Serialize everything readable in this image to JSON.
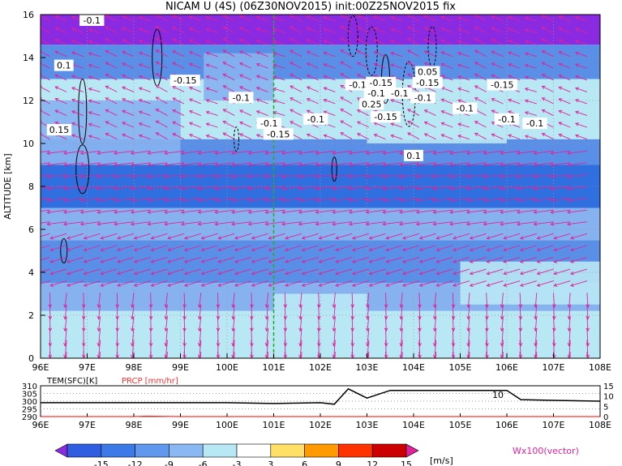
{
  "title": "NICAM U (4S) (06Z30NOV2015) init:00Z25NOV2015 fix",
  "colors": {
    "purple": "#8a2be2",
    "blue_dark": "#2f6fe0",
    "blue_mid": "#5a8fe8",
    "blue_light": "#86b3f0",
    "cyan_light": "#b9e8f5",
    "vector": "#e0229a",
    "green_line": "#22aa22",
    "precip_red": "#ff3333"
  },
  "chart_data": [
    {
      "type": "heatmap",
      "title": "NICAM U (4S) (06Z30NOV2015) init:00Z25NOV2015 fix",
      "xlabel": "",
      "ylabel": "ALTITUDE [km]",
      "x_ticks": [
        "96E",
        "97E",
        "98E",
        "99E",
        "100E",
        "101E",
        "102E",
        "103E",
        "104E",
        "105E",
        "106E",
        "107E",
        "108E"
      ],
      "y_ticks": [
        "0",
        "2",
        "4",
        "6",
        "8",
        "10",
        "12",
        "14",
        "16"
      ],
      "xlim": [
        96,
        108
      ],
      "ylim": [
        0,
        16
      ],
      "marker_line_x": 101,
      "contour_labels": [
        "-0.1",
        "0.1",
        "-0.15",
        "0.15",
        "-0.1",
        "-0.1",
        "-0.15",
        "-0.1",
        "-0.1",
        "-0.15",
        "0.25",
        "-0.15",
        "-0.1",
        "-0.1",
        "0.05",
        "-0.15",
        "-0.1",
        "-0.15",
        "-0.1",
        "-0.1",
        "-0.1",
        "0.1"
      ],
      "vector_label": "Wx100(vector)"
    },
    {
      "type": "line",
      "series": [
        {
          "name": "TEM(SFC)[K]",
          "x": [
            96,
            97,
            98,
            99,
            100,
            101,
            102,
            102.3,
            102.6,
            103,
            103.5,
            104,
            105,
            106,
            106.3,
            107,
            108
          ],
          "values": [
            299,
            299,
            299,
            299,
            299,
            298.5,
            299,
            298,
            308,
            302,
            307,
            307,
            307,
            307,
            301,
            300.5,
            300
          ]
        },
        {
          "name": "PRCP [mm/hr]",
          "x": [
            96,
            98,
            98.3,
            98.6,
            99,
            108
          ],
          "values": [
            0,
            0,
            0.2,
            0.1,
            0,
            0
          ]
        }
      ],
      "x_ticks": [
        "96E",
        "97E",
        "98E",
        "99E",
        "100E",
        "101E",
        "102E",
        "103E",
        "104E",
        "105E",
        "106E",
        "107E",
        "108E"
      ],
      "left_ticks": [
        "310",
        "305",
        "300",
        "295",
        "290"
      ],
      "right_ticks": [
        "15",
        "10",
        "5",
        "0"
      ],
      "xlim": [
        96,
        108
      ],
      "ylim_left": [
        290,
        310
      ],
      "ylim_right": [
        0,
        15
      ],
      "annotation": "10"
    }
  ],
  "colorbar": {
    "labels": [
      "-15",
      "-12",
      "-9",
      "-6",
      "-3",
      "3",
      "6",
      "9",
      "12",
      "15"
    ],
    "unit": "[m/s]",
    "colors": [
      "#8a2be2",
      "#2f5fe0",
      "#3c7ae8",
      "#5f98ec",
      "#8ab8f2",
      "#b9e8f5",
      "#ffffff",
      "#ffe066",
      "#ff9900",
      "#ff3300",
      "#cc0000",
      "#e0229a"
    ]
  }
}
